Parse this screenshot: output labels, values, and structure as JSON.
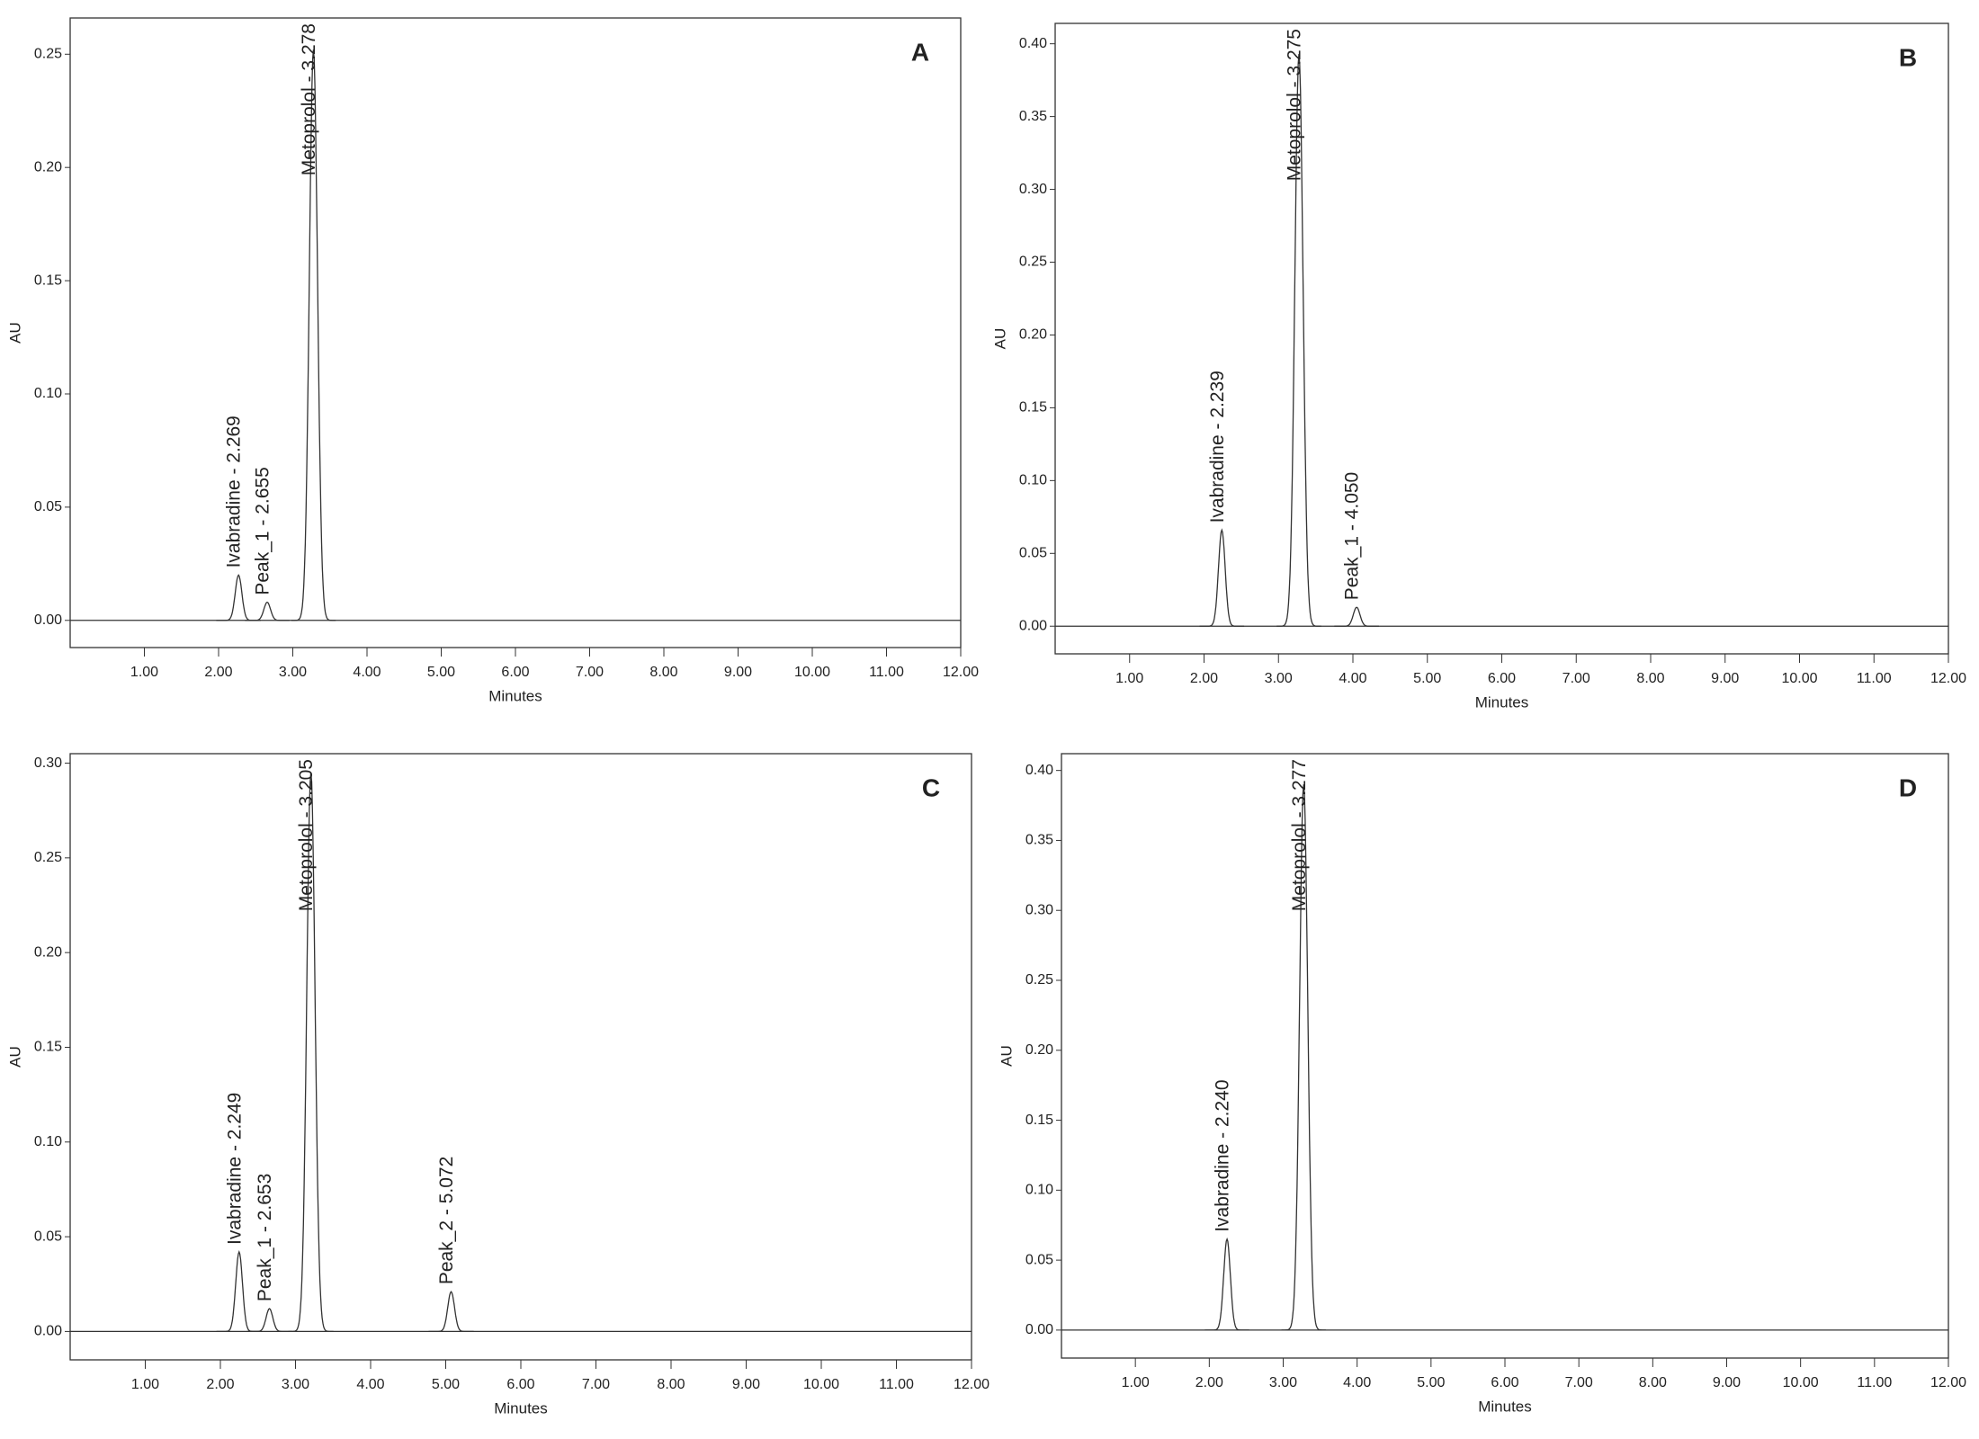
{
  "chart_data": [
    {
      "type": "chromatogram",
      "title": "A",
      "xlabel": "Minutes",
      "ylabel": "AU",
      "xlim": [
        0,
        12
      ],
      "xticks": [
        {
          "value": 1,
          "label": "1.00"
        },
        {
          "value": 2,
          "label": "2.00"
        },
        {
          "value": 3,
          "label": "3.00"
        },
        {
          "value": 4,
          "label": "4.00"
        },
        {
          "value": 5,
          "label": "5.00"
        },
        {
          "value": 6,
          "label": "6.00"
        },
        {
          "value": 7,
          "label": "7.00"
        },
        {
          "value": 8,
          "label": "8.00"
        },
        {
          "value": 9,
          "label": "9.00"
        },
        {
          "value": 10,
          "label": "10.00"
        },
        {
          "value": 11,
          "label": "11.00"
        },
        {
          "value": 12,
          "label": "12.00"
        }
      ],
      "ylim": [
        -0.012,
        0.266
      ],
      "yticks": [
        {
          "value": 0,
          "label": "0.00"
        },
        0.05,
        {
          "value": 0.1,
          "label": "0.10"
        },
        0.15,
        {
          "value": 0.2,
          "label": "0.20"
        },
        0.25
      ],
      "x": [
        2.269,
        2.655,
        3.278
      ],
      "values": [
        0.02,
        0.008,
        0.252
      ],
      "labels": [
        "Ivabradine - 2.269",
        "Peak_1 - 2.655",
        "Metoprolol - 3.278"
      ]
    },
    {
      "type": "chromatogram",
      "title": "B",
      "xlabel": "Minutes",
      "ylabel": "AU",
      "xlim": [
        0,
        12
      ],
      "xticks": [
        {
          "value": 1,
          "label": "1.00"
        },
        {
          "value": 2,
          "label": "2.00"
        },
        {
          "value": 3,
          "label": "3.00"
        },
        {
          "value": 4,
          "label": "4.00"
        },
        {
          "value": 5,
          "label": "5.00"
        },
        {
          "value": 6,
          "label": "6.00"
        },
        {
          "value": 7,
          "label": "7.00"
        },
        {
          "value": 8,
          "label": "8.00"
        },
        {
          "value": 9,
          "label": "9.00"
        },
        {
          "value": 10,
          "label": "10.00"
        },
        {
          "value": 11,
          "label": "11.00"
        },
        {
          "value": 12,
          "label": "12.00"
        }
      ],
      "ylim": [
        -0.019,
        0.414
      ],
      "yticks": [
        {
          "value": 0,
          "label": "0.00"
        },
        0.05,
        {
          "value": 0.1,
          "label": "0.10"
        },
        0.15,
        {
          "value": 0.2,
          "label": "0.20"
        },
        0.25,
        {
          "value": 0.3,
          "label": "0.30"
        },
        0.35,
        {
          "value": 0.4,
          "label": "0.40"
        }
      ],
      "x": [
        2.239,
        3.275,
        4.05
      ],
      "values": [
        0.066,
        0.393,
        0.013
      ],
      "labels": [
        "Ivabradine - 2.239",
        "Metoprolol - 3.275",
        "Peak_1 - 4.050"
      ]
    },
    {
      "type": "chromatogram",
      "title": "C",
      "xlabel": "Minutes",
      "ylabel": "AU",
      "xlim": [
        0,
        12
      ],
      "xticks": [
        {
          "value": 1,
          "label": "1.00"
        },
        {
          "value": 2,
          "label": "2.00"
        },
        {
          "value": 3,
          "label": "3.00"
        },
        {
          "value": 4,
          "label": "4.00"
        },
        {
          "value": 5,
          "label": "5.00"
        },
        {
          "value": 6,
          "label": "6.00"
        },
        {
          "value": 7,
          "label": "7.00"
        },
        {
          "value": 8,
          "label": "8.00"
        },
        {
          "value": 9,
          "label": "9.00"
        },
        {
          "value": 10,
          "label": "10.00"
        },
        {
          "value": 11,
          "label": "11.00"
        },
        {
          "value": 12,
          "label": "12.00"
        }
      ],
      "ylim": [
        -0.015,
        0.305
      ],
      "yticks": [
        {
          "value": 0,
          "label": "0.00"
        },
        0.05,
        {
          "value": 0.1,
          "label": "0.10"
        },
        0.15,
        {
          "value": 0.2,
          "label": "0.20"
        },
        0.25,
        {
          "value": 0.3,
          "label": "0.30"
        }
      ],
      "x": [
        2.249,
        2.653,
        3.205,
        5.072
      ],
      "values": [
        0.042,
        0.012,
        0.295,
        0.021
      ],
      "labels": [
        "Ivabradine - 2.249",
        "Peak_1 - 2.653",
        "Metoprolol - 3.205",
        "Peak_2 - 5.072"
      ]
    },
    {
      "type": "chromatogram",
      "title": "D",
      "xlabel": "Minutes",
      "ylabel": "AU",
      "xlim": [
        0,
        12
      ],
      "xticks": [
        {
          "value": 1,
          "label": "1.00"
        },
        {
          "value": 2,
          "label": "2.00"
        },
        {
          "value": 3,
          "label": "3.00"
        },
        {
          "value": 4,
          "label": "4.00"
        },
        {
          "value": 5,
          "label": "5.00"
        },
        {
          "value": 6,
          "label": "6.00"
        },
        {
          "value": 7,
          "label": "7.00"
        },
        {
          "value": 8,
          "label": "8.00"
        },
        {
          "value": 9,
          "label": "9.00"
        },
        {
          "value": 10,
          "label": "10.00"
        },
        {
          "value": 11,
          "label": "11.00"
        },
        {
          "value": 12,
          "label": "12.00"
        }
      ],
      "ylim": [
        -0.02,
        0.412
      ],
      "yticks": [
        {
          "value": 0,
          "label": "0.00"
        },
        0.05,
        {
          "value": 0.1,
          "label": "0.10"
        },
        0.15,
        {
          "value": 0.2,
          "label": "0.20"
        },
        0.25,
        {
          "value": 0.3,
          "label": "0.30"
        },
        0.35,
        {
          "value": 0.4,
          "label": "0.40"
        }
      ],
      "x": [
        2.24,
        3.277
      ],
      "values": [
        0.065,
        0.39
      ],
      "labels": [
        "Ivabradine - 2.240",
        "Metoprolol - 3.277"
      ]
    }
  ]
}
